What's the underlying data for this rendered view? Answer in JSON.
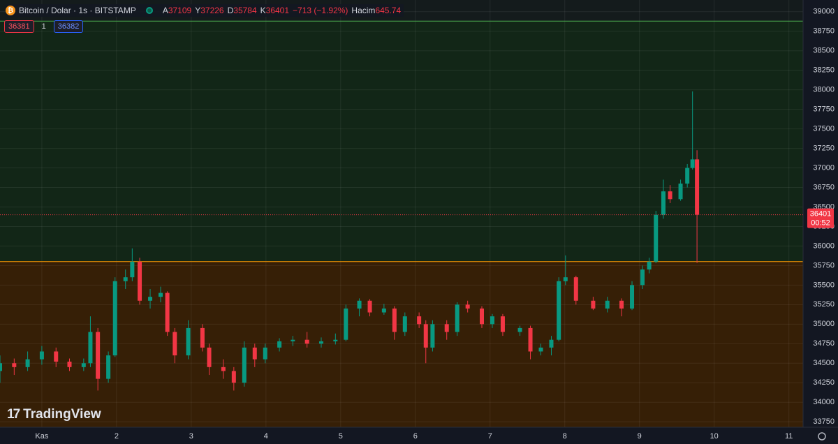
{
  "chart_data": {
    "type": "candlestick",
    "title": "Bitcoin / Dolar · 1s · BITSTAMP",
    "ohlc_labels": [
      "A",
      "Y",
      "D",
      "K"
    ],
    "change": "−713 (−1.92%)",
    "volume_label": "Hacim",
    "volume": 645.74,
    "bid": 36381,
    "quantity": 1,
    "ask": 36382,
    "countdown": "00:52",
    "watermark": "TradingView",
    "up_color": "#089981",
    "down_color": "#f23645",
    "levels": [
      38880,
      35800
    ],
    "level_colors": [
      "#4caf50",
      "#ff9800"
    ],
    "zone_colors": [
      "#122617",
      "#361f06"
    ],
    "grid": true,
    "xlim": [
      0.44,
      11.19
    ],
    "xticks": [
      {
        "value": 1,
        "label": "Kas"
      },
      2,
      3,
      4,
      5,
      6,
      7,
      8,
      9,
      10,
      11
    ],
    "ylim": [
      33680,
      39150
    ],
    "yticks": [
      33750,
      34000,
      34250,
      34500,
      34750,
      35000,
      35250,
      35500,
      35750,
      36000,
      36250,
      36500,
      36750,
      37000,
      37250,
      37500,
      37750,
      38000,
      38250,
      38500,
      38750,
      39000
    ],
    "x": [
      0.44,
      0.63,
      0.81,
      1.0,
      1.19,
      1.37,
      1.56,
      1.65,
      1.75,
      1.89,
      1.98,
      2.12,
      2.21,
      2.31,
      2.45,
      2.59,
      2.68,
      2.78,
      2.96,
      3.15,
      3.24,
      3.43,
      3.57,
      3.71,
      3.85,
      3.99,
      4.18,
      4.36,
      4.55,
      4.74,
      4.93,
      5.07,
      5.25,
      5.39,
      5.58,
      5.72,
      5.86,
      6.05,
      6.14,
      6.23,
      6.42,
      6.56,
      6.7,
      6.89,
      7.03,
      7.17,
      7.4,
      7.54,
      7.68,
      7.82,
      7.92,
      8.01,
      8.15,
      8.38,
      8.57,
      8.76,
      8.9,
      9.04,
      9.13,
      9.22,
      9.32,
      9.41,
      9.55,
      9.64,
      9.71,
      9.77
    ],
    "open": [
      34400,
      34500,
      34450,
      34550,
      34650,
      34520,
      34450,
      34500,
      34900,
      34300,
      34600,
      35550,
      35600,
      35800,
      35300,
      35350,
      35400,
      34900,
      34600,
      34950,
      34700,
      34450,
      34400,
      34250,
      34700,
      34550,
      34700,
      34780,
      34800,
      34750,
      34780,
      34800,
      35200,
      35300,
      35150,
      35200,
      34900,
      35100,
      35000,
      34700,
      35000,
      34900,
      35250,
      35200,
      35000,
      35100,
      34900,
      34950,
      34650,
      34700,
      34800,
      35550,
      35600,
      35300,
      35200,
      35300,
      35200,
      35500,
      35700,
      35800,
      36400,
      36700,
      36600,
      36800,
      37000,
      37109
    ],
    "high": [
      34600,
      34560,
      34650,
      34720,
      34700,
      34560,
      34560,
      35100,
      34950,
      34650,
      35600,
      35700,
      35970,
      35850,
      35450,
      35480,
      35420,
      34950,
      35050,
      35000,
      34750,
      34550,
      34450,
      34780,
      34750,
      34750,
      34820,
      34850,
      34900,
      34830,
      34880,
      35250,
      35330,
      35320,
      35260,
      35230,
      35150,
      35150,
      35050,
      35050,
      35050,
      35280,
      35300,
      35230,
      35130,
      35130,
      34980,
      34980,
      34750,
      34850,
      35600,
      35880,
      35620,
      35350,
      35350,
      35330,
      35550,
      35750,
      35850,
      36450,
      36850,
      36780,
      36850,
      37050,
      37980,
      37226
    ],
    "low": [
      34250,
      34350,
      34400,
      34480,
      34450,
      34400,
      34400,
      34450,
      34150,
      34250,
      34580,
      35450,
      35550,
      35250,
      35200,
      35280,
      34850,
      34500,
      34550,
      34650,
      34350,
      34300,
      34150,
      34200,
      34450,
      34500,
      34650,
      34720,
      34700,
      34700,
      34740,
      34780,
      35100,
      35100,
      35120,
      34800,
      34850,
      34950,
      34500,
      34650,
      34800,
      34850,
      35150,
      34950,
      34950,
      34850,
      34850,
      34550,
      34600,
      34600,
      34780,
      35500,
      35250,
      35180,
      35150,
      35100,
      35180,
      35450,
      35650,
      35780,
      36350,
      36550,
      36580,
      36750,
      36980,
      35784
    ],
    "close": [
      34500,
      34450,
      34550,
      34650,
      34520,
      34450,
      34500,
      34900,
      34300,
      34600,
      35550,
      35600,
      35800,
      35300,
      35350,
      35400,
      34900,
      34600,
      34950,
      34700,
      34450,
      34400,
      34250,
      34700,
      34550,
      34700,
      34780,
      34800,
      34750,
      34780,
      34800,
      35200,
      35300,
      35150,
      35200,
      34900,
      35100,
      35000,
      34700,
      35000,
      34900,
      35250,
      35200,
      35000,
      35100,
      34900,
      34950,
      34650,
      34700,
      34800,
      35550,
      35600,
      35300,
      35200,
      35300,
      35200,
      35500,
      35700,
      35800,
      36400,
      36700,
      36600,
      36800,
      37000,
      37109,
      36401
    ]
  }
}
